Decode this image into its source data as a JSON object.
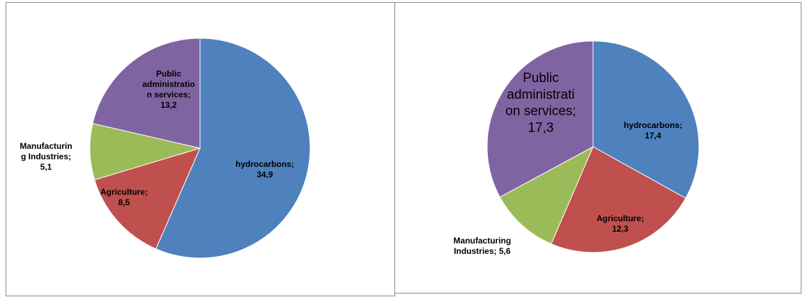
{
  "chart_data": [
    {
      "type": "pie",
      "categories": [
        "hydrocarbons",
        "Agriculture",
        "Manufacturing Industries",
        "Public administration services"
      ],
      "values": [
        34.9,
        8.5,
        5.1,
        13.2
      ],
      "value_labels": [
        "34,9",
        "8,5",
        "5,1",
        "13,2"
      ],
      "label_separator": ";",
      "colors": [
        "#4f81bd",
        "#c0504d",
        "#9bbb59",
        "#8064a2"
      ]
    },
    {
      "type": "pie",
      "categories": [
        "hydrocarbons",
        "Agriculture",
        "Manufacturing Industries",
        "Public administration services"
      ],
      "values": [
        17.4,
        12.3,
        5.6,
        17.3
      ],
      "value_labels": [
        "17,4",
        "12,3",
        "5,6",
        "17,3"
      ],
      "label_separator": ";",
      "colors": [
        "#4f81bd",
        "#c0504d",
        "#9bbb59",
        "#8064a2"
      ]
    }
  ]
}
